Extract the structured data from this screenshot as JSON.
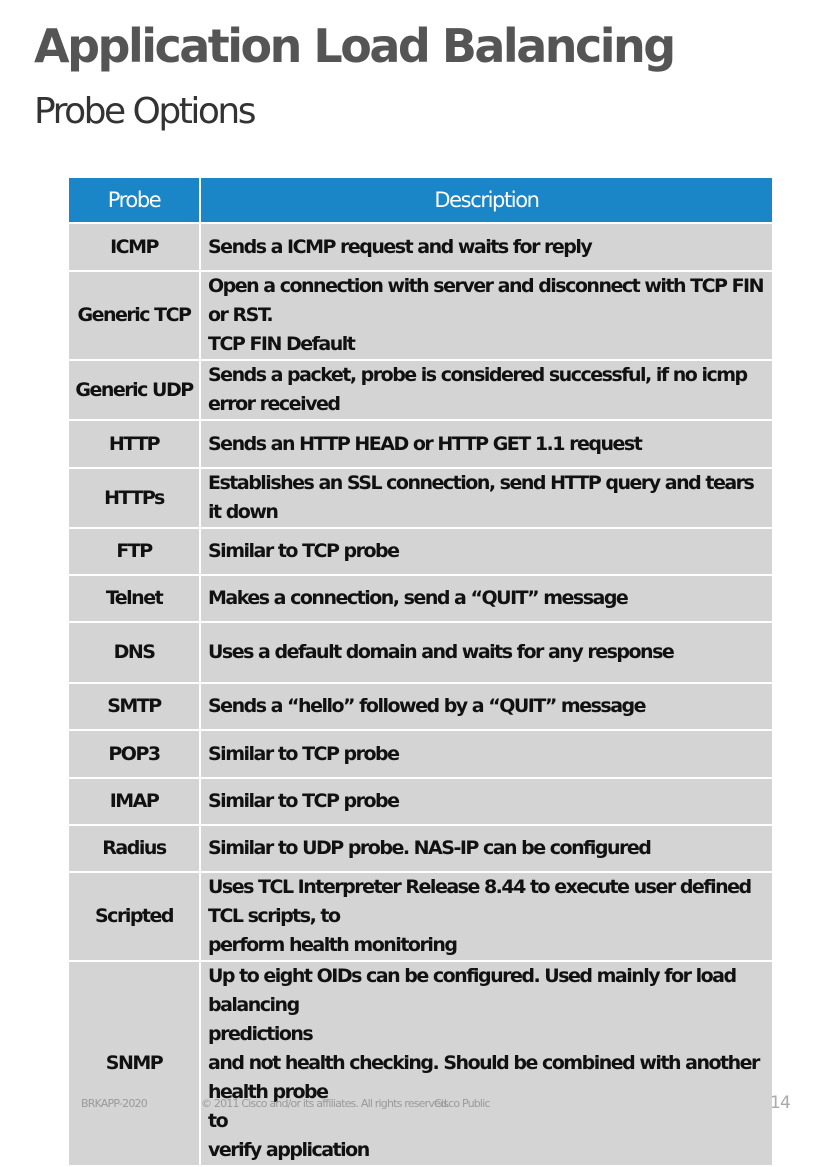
{
  "slide": {
    "title": "Application Load Balancing",
    "subtitle": "Probe Options"
  },
  "table": {
    "headers": [
      "Probe",
      "Description"
    ],
    "rows": [
      {
        "probe": "ICMP",
        "description": "Sends a ICMP request and waits for reply"
      },
      {
        "probe": "Generic TCP",
        "description": "Open a connection with server and disconnect with TCP FIN or RST.\nTCP FIN Default"
      },
      {
        "probe": "Generic UDP",
        "description": "Sends a packet, probe is considered successful, if no icmp error received"
      },
      {
        "probe": "HTTP",
        "description": "Sends an HTTP HEAD or HTTP GET 1.1 request"
      },
      {
        "probe": "HTTPs",
        "description": "Establishes an SSL connection, send HTTP query and tears it down"
      },
      {
        "probe": "FTP",
        "description": "Similar to TCP probe"
      },
      {
        "probe": "Telnet",
        "description": "Makes a connection, send a “QUIT” message"
      },
      {
        "probe": "DNS",
        "description": "Uses a default domain and waits for any response"
      },
      {
        "probe": "SMTP",
        "description": "Sends a “hello” followed by a “QUIT” message"
      },
      {
        "probe": "POP3",
        "description": "Similar to TCP probe"
      },
      {
        "probe": "IMAP",
        "description": "Similar to TCP probe"
      },
      {
        "probe": "Radius",
        "description": "Similar to UDP probe. NAS-IP can be configured"
      },
      {
        "probe": "Scripted",
        "description": "Uses TCL Interpreter Release 8.44 to execute user defined TCL scripts, to\nperform health monitoring"
      },
      {
        "probe": "SNMP",
        "description": "Up to eight OIDs can be configured. Used mainly for load balancing\npredictions\nand not health checking. Should be combined with another health probe\nto\nverify application"
      }
    ]
  },
  "footer": {
    "session_code": "BRKAPP-2020",
    "copyright": "© 2011 Cisco and/or its affiliates. All rights reserved.",
    "classification": "Cisco Public",
    "page_number": "14"
  },
  "colors": {
    "header_bg": "#1a86c7",
    "row_bg": "#d4d4d4",
    "title_text": "#555555"
  }
}
